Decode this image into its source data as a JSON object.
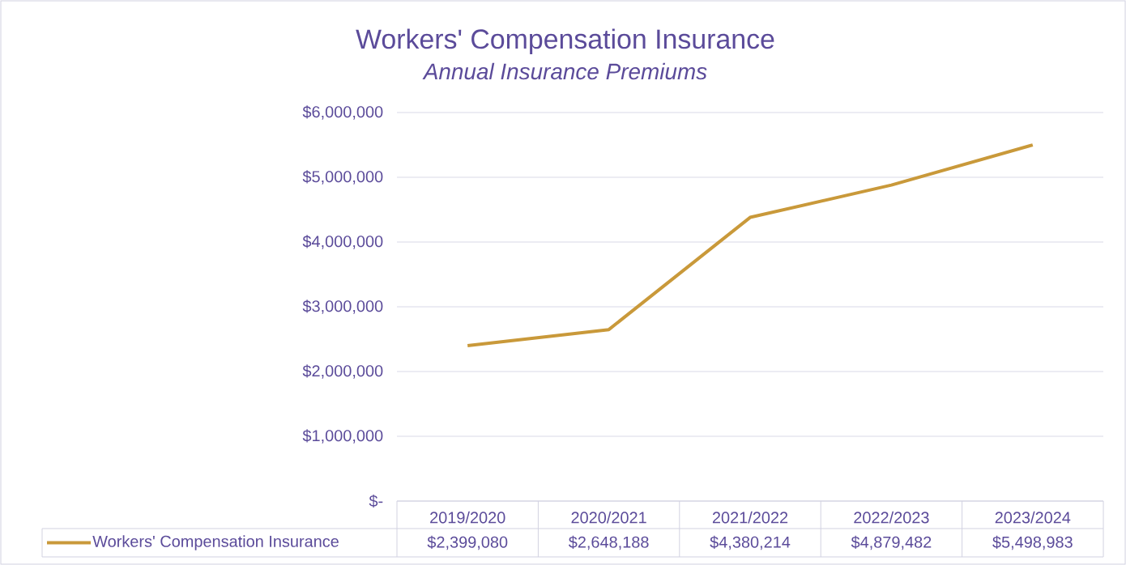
{
  "chart_data": {
    "type": "line",
    "title": "Workers' Compensation Insurance",
    "subtitle": "Annual Insurance Premiums",
    "categories": [
      "2019/2020",
      "2020/2021",
      "2021/2022",
      "2022/2023",
      "2023/2024"
    ],
    "series": [
      {
        "name": "Workers' Compensation Insurance",
        "color": "#c9993a",
        "values": [
          2399080,
          2648188,
          4380214,
          4879482,
          5498983
        ],
        "value_labels": [
          "$2,399,080",
          "$2,648,188",
          "$4,380,214",
          "$4,879,482",
          "$5,498,983"
        ]
      }
    ],
    "ylim": [
      0,
      6000000
    ],
    "yticks": [
      {
        "value": 0,
        "label": "$-"
      },
      {
        "value": 1000000,
        "label": "$1,000,000"
      },
      {
        "value": 2000000,
        "label": "$2,000,000"
      },
      {
        "value": 3000000,
        "label": "$3,000,000"
      },
      {
        "value": 4000000,
        "label": "$4,000,000"
      },
      {
        "value": 5000000,
        "label": "$5,000,000"
      },
      {
        "value": 6000000,
        "label": "$6,000,000"
      }
    ],
    "grid": "y",
    "legend": "bottom",
    "marker": "none",
    "line_style": "solid"
  }
}
